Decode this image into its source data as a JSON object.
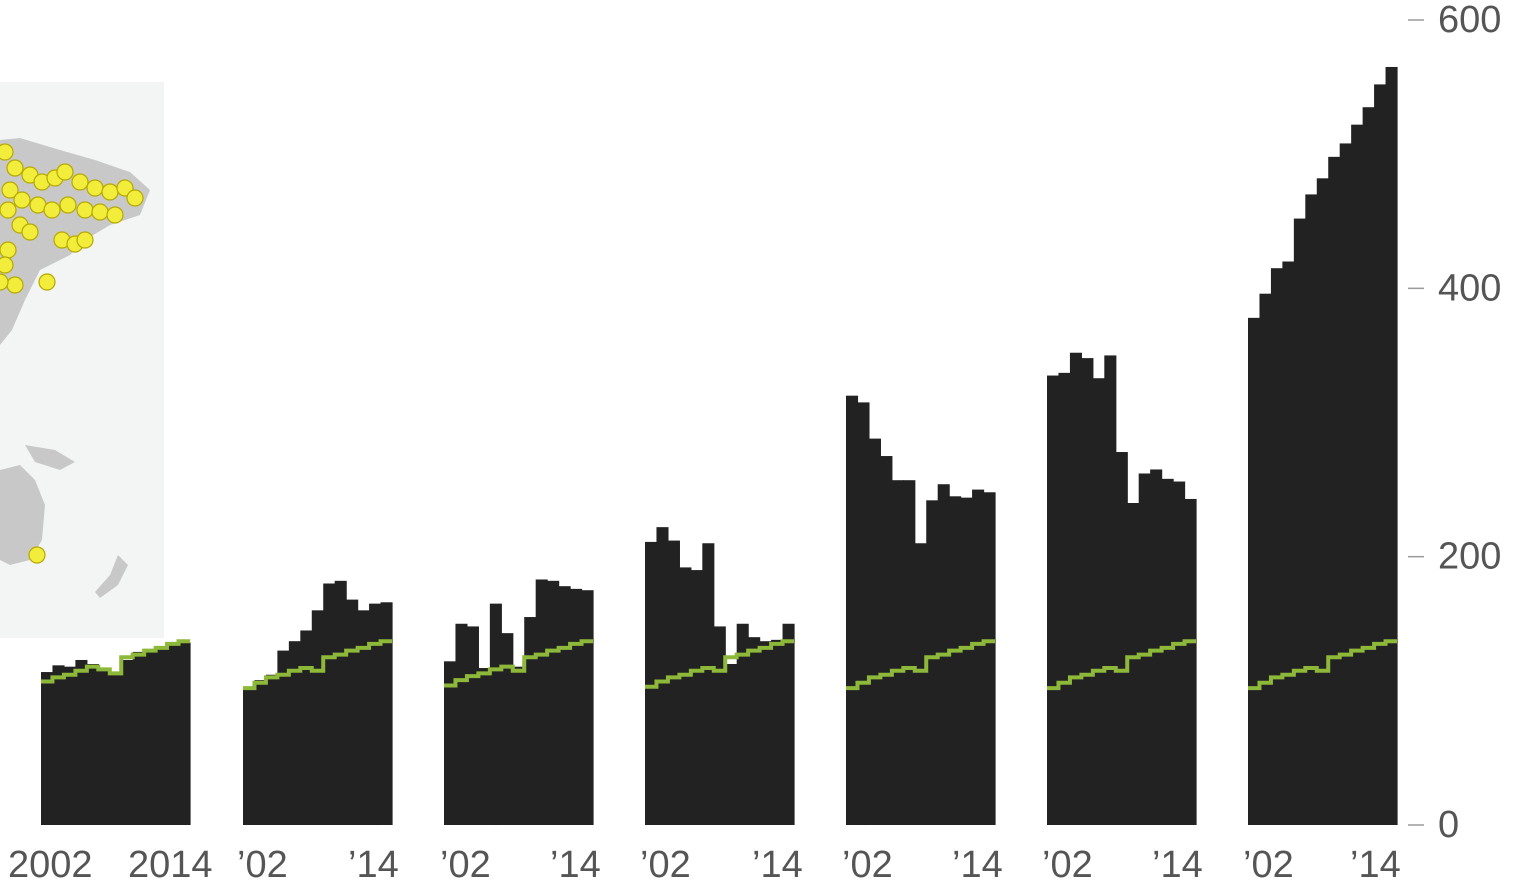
{
  "chart_data": {
    "type": "bar",
    "y_axis": {
      "ticks": [
        0,
        200,
        400,
        600
      ],
      "ylim": [
        0,
        600
      ],
      "position": "right"
    },
    "grid": false,
    "colors": {
      "bars": "#222222",
      "line": "#8db83a",
      "map_land": "#c8c8c8",
      "map_water": "#f3f5f5",
      "map_dots": "#f2ec3a"
    },
    "panels": [
      {
        "x_labels": [
          "2002",
          "2014"
        ],
        "x": [
          2002,
          2003,
          2004,
          2005,
          2006,
          2007,
          2008,
          2009,
          2010,
          2011,
          2012,
          2013,
          2014
        ],
        "bars": [
          114,
          119,
          118,
          123,
          120,
          115,
          112,
          123,
          129,
          131,
          132,
          134,
          136
        ],
        "line": [
          107,
          110,
          112,
          115,
          118,
          116,
          113,
          125,
          127,
          130,
          132,
          135,
          137
        ]
      },
      {
        "x_labels": [
          "’02",
          "’14"
        ],
        "x": [
          2002,
          2003,
          2004,
          2005,
          2006,
          2007,
          2008,
          2009,
          2010,
          2011,
          2012,
          2013,
          2014
        ],
        "bars": [
          103,
          108,
          112,
          130,
          137,
          145,
          160,
          180,
          182,
          168,
          160,
          165,
          166
        ],
        "line": [
          102,
          106,
          110,
          112,
          115,
          117,
          115,
          125,
          127,
          130,
          132,
          135,
          137
        ]
      },
      {
        "x_labels": [
          "’02",
          "’14"
        ],
        "x": [
          2002,
          2003,
          2004,
          2005,
          2006,
          2007,
          2008,
          2009,
          2010,
          2011,
          2012,
          2013,
          2014
        ],
        "bars": [
          122,
          150,
          148,
          117,
          165,
          143,
          118,
          155,
          183,
          182,
          178,
          176,
          175
        ],
        "line": [
          104,
          108,
          111,
          113,
          116,
          118,
          115,
          125,
          127,
          130,
          132,
          135,
          137
        ]
      },
      {
        "x_labels": [
          "’02",
          "’14"
        ],
        "x": [
          2002,
          2003,
          2004,
          2005,
          2006,
          2007,
          2008,
          2009,
          2010,
          2011,
          2012,
          2013,
          2014
        ],
        "bars": [
          211,
          222,
          212,
          192,
          190,
          210,
          148,
          120,
          150,
          140,
          137,
          138,
          150
        ],
        "line": [
          103,
          107,
          110,
          112,
          115,
          117,
          115,
          125,
          127,
          130,
          132,
          135,
          137
        ]
      },
      {
        "x_labels": [
          "’02",
          "’14"
        ],
        "x": [
          2002,
          2003,
          2004,
          2005,
          2006,
          2007,
          2008,
          2009,
          2010,
          2011,
          2012,
          2013,
          2014
        ],
        "bars": [
          320,
          315,
          288,
          275,
          257,
          257,
          210,
          242,
          254,
          245,
          244,
          250,
          248
        ],
        "line": [
          102,
          106,
          110,
          112,
          115,
          117,
          115,
          125,
          127,
          130,
          132,
          135,
          137
        ]
      },
      {
        "x_labels": [
          "’02",
          "’14"
        ],
        "x": [
          2002,
          2003,
          2004,
          2005,
          2006,
          2007,
          2008,
          2009,
          2010,
          2011,
          2012,
          2013,
          2014
        ],
        "bars": [
          335,
          337,
          352,
          348,
          333,
          350,
          278,
          240,
          262,
          265,
          258,
          256,
          243
        ],
        "line": [
          102,
          106,
          110,
          112,
          115,
          117,
          115,
          125,
          127,
          130,
          132,
          135,
          137
        ]
      },
      {
        "x_labels": [
          "’02",
          "’14"
        ],
        "x": [
          2002,
          2003,
          2004,
          2005,
          2006,
          2007,
          2008,
          2009,
          2010,
          2011,
          2012,
          2013,
          2014
        ],
        "bars": [
          378,
          396,
          415,
          420,
          452,
          470,
          482,
          498,
          508,
          522,
          535,
          552,
          565
        ],
        "line": [
          102,
          106,
          110,
          112,
          115,
          117,
          115,
          125,
          127,
          130,
          132,
          135,
          137
        ]
      }
    ]
  },
  "map_inset": {
    "dots_shown": true
  }
}
